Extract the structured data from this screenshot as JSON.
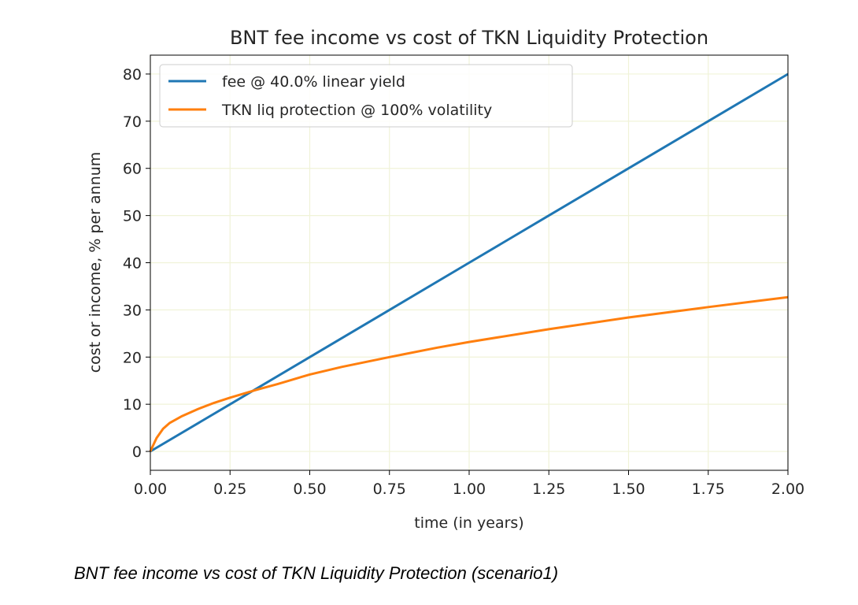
{
  "chart_data": {
    "type": "line",
    "title": "BNT fee income vs cost of TKN Liquidity Protection",
    "xlabel": "time (in years)",
    "ylabel": "cost or income, % per annum",
    "xlim": [
      0,
      2
    ],
    "ylim": [
      -4,
      84
    ],
    "x_ticks": [
      "0.00",
      "0.25",
      "0.50",
      "0.75",
      "1.00",
      "1.25",
      "1.50",
      "1.75",
      "2.00"
    ],
    "y_ticks": [
      "0",
      "10",
      "20",
      "30",
      "40",
      "50",
      "60",
      "70",
      "80"
    ],
    "grid": true,
    "legend_position": "upper-left",
    "series": [
      {
        "name": "fee @ 40.0% linear yield",
        "color": "#1f77b4",
        "x": [
          0,
          0.25,
          0.5,
          0.75,
          1.0,
          1.25,
          1.5,
          1.75,
          2.0
        ],
        "y": [
          0,
          10,
          20,
          30,
          40,
          50,
          60,
          70,
          80
        ]
      },
      {
        "name": "TKN liq protection @ 100% volatility",
        "color": "#ff7f0e",
        "x": [
          0,
          0.01,
          0.02,
          0.04,
          0.06,
          0.1,
          0.15,
          0.2,
          0.25,
          0.33,
          0.4,
          0.5,
          0.6,
          0.75,
          0.9,
          1.0,
          1.25,
          1.5,
          1.75,
          2.0
        ],
        "y": [
          0,
          1.5,
          2.9,
          4.8,
          6.0,
          7.5,
          9.0,
          10.3,
          11.4,
          13.0,
          14.3,
          16.3,
          17.9,
          20.0,
          22.0,
          23.2,
          25.9,
          28.4,
          30.6,
          32.7
        ]
      }
    ]
  },
  "caption": "BNT fee income vs cost of TKN Liquidity Protection (scenario1)"
}
